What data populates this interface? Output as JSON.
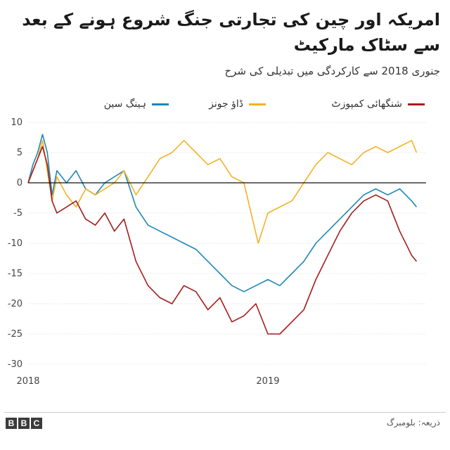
{
  "header": {
    "title": "امریکہ اور چین کی تجارتی جنگ شروع ہونے کے بعد سے سٹاک مارکیٹ",
    "subtitle": "جنوری 2018 سے کارکردگی میں تبدیلی کی شرح"
  },
  "footer": {
    "logo_letters": [
      "B",
      "B",
      "C"
    ],
    "source": "ذریعہ: بلومبرگ"
  },
  "chart_data": {
    "type": "line",
    "title": "امریکہ اور چین کی تجارتی جنگ شروع ہونے کے بعد سے سٹاک مارکیٹ",
    "subtitle": "جنوری 2018 سے کارکردگی میں تبدیلی کی شرح",
    "ylim": [
      -30,
      10
    ],
    "xlim": [
      2018.0,
      2019.66
    ],
    "yticks": [
      10,
      5,
      0,
      -5,
      -10,
      -15,
      -20,
      -25,
      -30
    ],
    "ytick_labels": [
      "10",
      "5",
      "0",
      "-5",
      "-10",
      "-15",
      "-20",
      "-25",
      "-30"
    ],
    "xticks": [
      2018,
      2019
    ],
    "xtick_labels": [
      "2018",
      "2019"
    ],
    "legend_position": "top",
    "series": [
      {
        "name": "شنگھائی کمپوزٹ",
        "color": "#a51c1c",
        "x": [
          2018.0,
          2018.02,
          2018.04,
          2018.06,
          2018.08,
          2018.1,
          2018.12,
          2018.16,
          2018.2,
          2018.24,
          2018.28,
          2018.32,
          2018.36,
          2018.4,
          2018.45,
          2018.5,
          2018.55,
          2018.6,
          2018.65,
          2018.7,
          2018.75,
          2018.8,
          2018.85,
          2018.9,
          2018.95,
          2019.0,
          2019.05,
          2019.1,
          2019.15,
          2019.2,
          2019.25,
          2019.3,
          2019.35,
          2019.4,
          2019.45,
          2019.5,
          2019.55,
          2019.6,
          2019.62
        ],
        "values": [
          0,
          2,
          4,
          6,
          3,
          -3,
          -5,
          -4,
          -3,
          -6,
          -7,
          -5,
          -8,
          -6,
          -13,
          -17,
          -19,
          -20,
          -17,
          -18,
          -21,
          -19,
          -23,
          -22,
          -20,
          -25,
          -25,
          -23,
          -21,
          -16,
          -12,
          -8,
          -5,
          -3,
          -2,
          -3,
          -8,
          -12,
          -13
        ]
      },
      {
        "name": "ڈاؤ جونز",
        "color": "#f2b227",
        "x": [
          2018.0,
          2018.02,
          2018.04,
          2018.06,
          2018.08,
          2018.1,
          2018.12,
          2018.16,
          2018.2,
          2018.24,
          2018.28,
          2018.32,
          2018.36,
          2018.4,
          2018.45,
          2018.5,
          2018.55,
          2018.6,
          2018.65,
          2018.7,
          2018.75,
          2018.8,
          2018.85,
          2018.9,
          2018.93,
          2018.96,
          2019.0,
          2019.05,
          2019.1,
          2019.15,
          2019.2,
          2019.25,
          2019.3,
          2019.35,
          2019.4,
          2019.45,
          2019.5,
          2019.55,
          2019.6,
          2019.62
        ],
        "values": [
          0,
          2,
          4,
          7,
          2,
          -3,
          1,
          -2,
          -4,
          -1,
          -2,
          -1,
          0,
          2,
          -2,
          1,
          4,
          5,
          7,
          5,
          3,
          4,
          1,
          0,
          -5,
          -10,
          -5,
          -4,
          -3,
          0,
          3,
          5,
          4,
          3,
          5,
          6,
          5,
          6,
          7,
          5
        ]
      },
      {
        "name": "ہینگ سین",
        "color": "#1f87b6",
        "x": [
          2018.0,
          2018.02,
          2018.04,
          2018.06,
          2018.08,
          2018.1,
          2018.12,
          2018.16,
          2018.2,
          2018.24,
          2018.28,
          2018.32,
          2018.36,
          2018.4,
          2018.45,
          2018.5,
          2018.55,
          2018.6,
          2018.65,
          2018.7,
          2018.75,
          2018.8,
          2018.85,
          2018.9,
          2018.95,
          2019.0,
          2019.05,
          2019.1,
          2019.15,
          2019.2,
          2019.25,
          2019.3,
          2019.35,
          2019.4,
          2019.45,
          2019.5,
          2019.55,
          2019.6,
          2019.62
        ],
        "values": [
          0,
          3,
          5,
          8,
          5,
          -2,
          2,
          0,
          2,
          -1,
          -2,
          0,
          1,
          2,
          -4,
          -7,
          -8,
          -9,
          -10,
          -11,
          -13,
          -15,
          -17,
          -18,
          -17,
          -16,
          -17,
          -15,
          -13,
          -10,
          -8,
          -6,
          -4,
          -2,
          -1,
          -2,
          -1,
          -3,
          -4
        ]
      }
    ]
  }
}
